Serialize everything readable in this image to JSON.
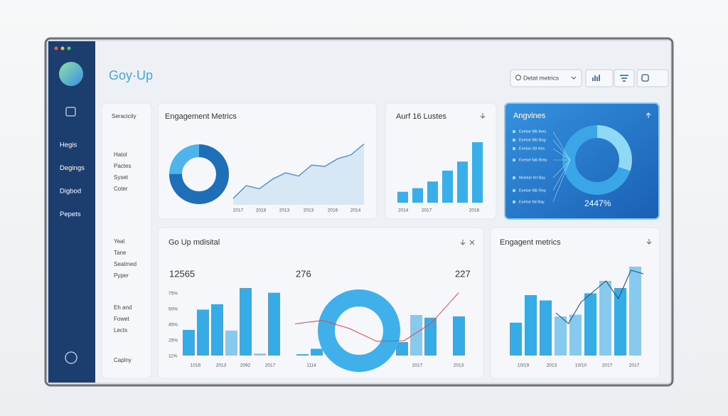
{
  "app": {
    "logo": "Goy·Up",
    "search": "Detat metrics"
  },
  "sidebar": {
    "nav": [
      "Hegis",
      "Degings",
      "Digbod",
      "Pepets"
    ]
  },
  "filters": {
    "groups": [
      [
        "Seracicity"
      ],
      [
        "Hatol",
        "Pactes",
        "Syset",
        "Coter"
      ],
      [
        "Yeal",
        "Tane",
        "Seatmed",
        "Pyper"
      ],
      [
        "Eh and",
        "Fowet",
        "Lects"
      ],
      [
        "Caplny"
      ]
    ]
  },
  "engagement": {
    "title": "Engagement Metrics",
    "donut": 75,
    "area": [
      10,
      30,
      25,
      40,
      50,
      45,
      62,
      60,
      72,
      78,
      95
    ],
    "x_labels": [
      "2017",
      "2018",
      "2013",
      "2013",
      "2016",
      "2014"
    ]
  },
  "aurf": {
    "title": "Aurf 16 Lustes",
    "bars": [
      18,
      24,
      35,
      53,
      68,
      100
    ],
    "x_labels": [
      "2014",
      "2017",
      "2016"
    ]
  },
  "angvines": {
    "title": "Angvines",
    "donut": 30,
    "legend": [
      "Evetoe fdb Ihes",
      "Evetoe fdb Bog",
      "Evetoe Stl Hes",
      "Evetoe fab Brep",
      "Moetoe fet Bay",
      "Evetoe fdb Rep",
      "Evetoe fat Bay"
    ],
    "total": "2447%"
  },
  "goup": {
    "title": "Go Up mdisital",
    "stats": [
      "12565",
      "276",
      "227"
    ],
    "y_labels": [
      "75%",
      "50%",
      "45%",
      "25%",
      "11%"
    ],
    "bars_left": [
      38,
      68,
      76,
      37,
      100,
      3,
      93
    ],
    "bars_right": [
      2,
      10,
      null,
      null,
      null,
      null,
      null,
      20,
      60,
      56,
      null,
      58
    ],
    "line": [
      47,
      52,
      40,
      21,
      22,
      48,
      93
    ],
    "x_labels": [
      "1016",
      "2013",
      "2092",
      "2017",
      "1114",
      "2017",
      "2013"
    ]
  },
  "engagent": {
    "title": "Engagent metrics",
    "bars": [
      37,
      68,
      62,
      44,
      46,
      70,
      84,
      76,
      100
    ],
    "line": [
      48,
      36,
      60,
      72,
      84,
      64,
      96,
      92
    ],
    "x_labels": [
      "10/19",
      "2013",
      "10/10",
      "2017",
      "2017"
    ]
  }
}
